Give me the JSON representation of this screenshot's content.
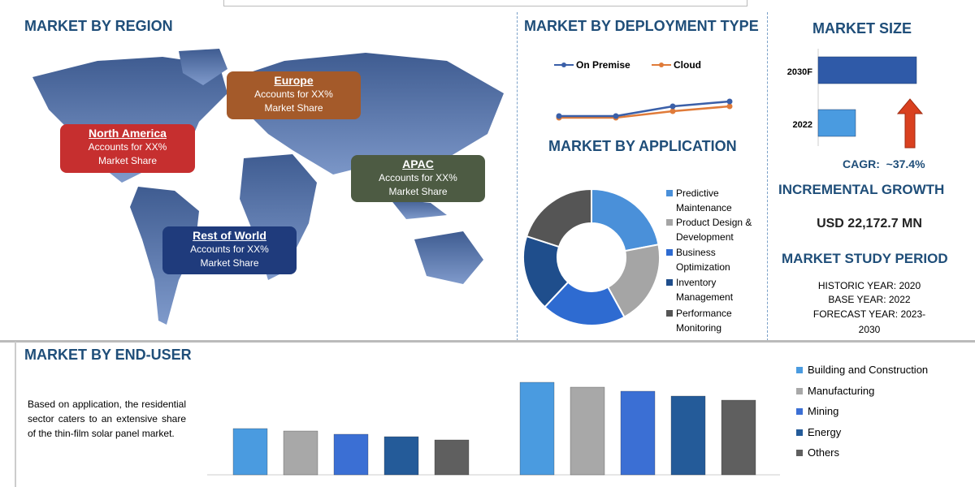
{
  "region": {
    "title": "MARKET BY REGION",
    "boxes": [
      {
        "name": "North America",
        "text1": "Accounts for XX%",
        "text2": "Market Share",
        "color": "#c62f2f"
      },
      {
        "name": "Europe",
        "text1": "Accounts for XX%",
        "text2": "Market Share",
        "color": "#a45a2a"
      },
      {
        "name": "APAC",
        "text1": "Accounts for XX%",
        "text2": "Market Share",
        "color": "#4d5b43"
      },
      {
        "name": "Rest of World",
        "text1": "Accounts for XX%",
        "text2": "Market Share",
        "color": "#1f3b7c"
      }
    ]
  },
  "deployment": {
    "title": "MARKET BY DEPLOYMENT TYPE"
  },
  "application": {
    "title": "MARKET BY APPLICATION"
  },
  "size": {
    "title": "MARKET SIZE",
    "cagr": "CAGR:  ~37.4%",
    "incremental_title": "INCREMENTAL GROWTH",
    "incremental_value": "USD 22,172.7 MN",
    "study_title": "MARKET STUDY PERIOD",
    "historic": "HISTORIC YEAR: 2020",
    "base": "BASE YEAR: 2022",
    "forecast": "FORECAST YEAR: 2023-",
    "forecast2": "2030"
  },
  "enduser": {
    "title": "MARKET BY END-USER",
    "description": "Based on application, the residential sector caters to an extensive share of the thin-film solar panel market."
  },
  "chart_data": [
    {
      "type": "line",
      "series": [
        {
          "name": "On Premise",
          "color": "#3a5fa8",
          "values": [
            1.0,
            1.0,
            1.6,
            1.9
          ]
        },
        {
          "name": "Cloud",
          "color": "#e07b39",
          "values": [
            0.9,
            0.9,
            1.3,
            1.6
          ]
        }
      ]
    },
    {
      "type": "pie",
      "donut": true,
      "categories": [
        "Predictive Maintenance",
        "Product Design & Development",
        "Business Optimization",
        "Inventory Management",
        "Performance Monitoring"
      ],
      "values": [
        22,
        20,
        20,
        18,
        20
      ],
      "colors": [
        "#4a90d9",
        "#a5a5a5",
        "#2e6bd1",
        "#1f4e8c",
        "#555555"
      ]
    },
    {
      "type": "bar",
      "orientation": "horizontal",
      "categories": [
        "2030F",
        "2022"
      ],
      "values": [
        100,
        38
      ],
      "colors": [
        "#2f5aa8",
        "#4a9be0"
      ]
    },
    {
      "type": "bar",
      "categories": [
        "Building and Construction",
        "Manufacturing",
        "Mining",
        "Energy",
        "Others"
      ],
      "colors": [
        "#4a9be0",
        "#a8a8a8",
        "#3b6fd4",
        "#245b99",
        "#5f5f5f"
      ],
      "series": [
        {
          "values": [
            57,
            54,
            50,
            47,
            43
          ]
        },
        {
          "values": [
            114,
            108,
            103,
            97,
            92
          ]
        }
      ]
    }
  ]
}
